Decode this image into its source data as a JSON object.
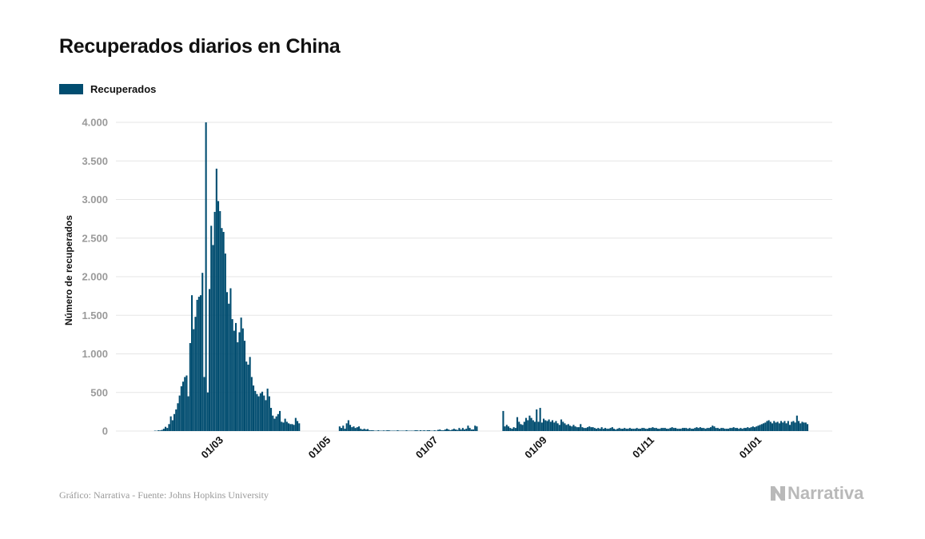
{
  "chart_data": {
    "type": "bar",
    "title": "Recuperados diarios en China",
    "ylabel": "Número de recuperados",
    "xlabel": "",
    "ylim": [
      0,
      4000
    ],
    "yticks": [
      0,
      500,
      1000,
      1500,
      2000,
      2500,
      3000,
      3500,
      4000
    ],
    "ytick_labels": [
      "0",
      "500",
      "1.000",
      "1.500",
      "2.000",
      "2.500",
      "3.000",
      "3.500",
      "4.000"
    ],
    "xtick_labels": [
      "01/03",
      "01/05",
      "01/07",
      "01/09",
      "01/11",
      "01/01"
    ],
    "grid": true,
    "legend": {
      "position": "top-left",
      "entries": [
        "Recuperados"
      ]
    },
    "color": "#014d70",
    "series": [
      {
        "name": "Recuperados",
        "start_date": "2020-01-22",
        "values": [
          0,
          0,
          0,
          5,
          3,
          10,
          8,
          15,
          30,
          55,
          40,
          90,
          190,
          140,
          220,
          280,
          360,
          460,
          580,
          640,
          700,
          720,
          450,
          1140,
          1760,
          1320,
          1480,
          1700,
          1740,
          1760,
          2050,
          700,
          4000,
          500,
          1840,
          2660,
          2410,
          2840,
          3400,
          2980,
          2850,
          2630,
          2580,
          2300,
          1800,
          1650,
          1850,
          1450,
          1300,
          1400,
          1150,
          1280,
          1470,
          1330,
          1170,
          900,
          860,
          960,
          700,
          590,
          520,
          480,
          450,
          490,
          510,
          460,
          400,
          550,
          450,
          300,
          200,
          160,
          190,
          220,
          260,
          120,
          110,
          160,
          120,
          100,
          90,
          90,
          80,
          170,
          130,
          100,
          0,
          0,
          0,
          0,
          0,
          0,
          0,
          0,
          0,
          0,
          0,
          0,
          0,
          0,
          0,
          0,
          0,
          0,
          0,
          0,
          0,
          0,
          60,
          40,
          70,
          30,
          100,
          140,
          80,
          50,
          60,
          40,
          50,
          60,
          30,
          20,
          30,
          20,
          25,
          10,
          10,
          10,
          5,
          5,
          10,
          5,
          5,
          8,
          5,
          10,
          10,
          5,
          5,
          5,
          5,
          10,
          5,
          5,
          5,
          5,
          10,
          5,
          5,
          5,
          5,
          10,
          10,
          5,
          10,
          5,
          10,
          5,
          10,
          10,
          5,
          5,
          10,
          5,
          15,
          20,
          10,
          10,
          20,
          30,
          20,
          10,
          20,
          30,
          20,
          15,
          40,
          20,
          40,
          20,
          30,
          70,
          40,
          20,
          20,
          70,
          60,
          0,
          0,
          0,
          0,
          0,
          0,
          0,
          0,
          0,
          0,
          0,
          0,
          0,
          0,
          260,
          60,
          80,
          60,
          40,
          30,
          50,
          40,
          180,
          120,
          90,
          80,
          120,
          170,
          140,
          200,
          170,
          140,
          120,
          280,
          120,
          300,
          110,
          160,
          140,
          130,
          150,
          120,
          140,
          110,
          130,
          100,
          80,
          150,
          120,
          100,
          80,
          90,
          70,
          60,
          80,
          60,
          50,
          50,
          90,
          50,
          40,
          40,
          50,
          60,
          50,
          50,
          40,
          30,
          40,
          30,
          50,
          30,
          40,
          30,
          30,
          40,
          50,
          30,
          20,
          30,
          40,
          30,
          30,
          40,
          30,
          30,
          40,
          30,
          30,
          30,
          40,
          30,
          30,
          40,
          40,
          30,
          30,
          40,
          40,
          50,
          40,
          40,
          30,
          30,
          40,
          40,
          40,
          30,
          30,
          40,
          50,
          40,
          40,
          30,
          30,
          30,
          40,
          40,
          40,
          30,
          40,
          30,
          30,
          40,
          50,
          40,
          50,
          40,
          40,
          30,
          40,
          40,
          50,
          70,
          60,
          40,
          40,
          30,
          40,
          40,
          30,
          30,
          30,
          40,
          40,
          50,
          40,
          40,
          30,
          40,
          30,
          40,
          40,
          50,
          40,
          50,
          60,
          50,
          60,
          70,
          80,
          90,
          100,
          110,
          130,
          140,
          120,
          100,
          130,
          110,
          120,
          100,
          130,
          110,
          130,
          100,
          130,
          80,
          120,
          130,
          110,
          200,
          130,
          100,
          120,
          110,
          110,
          90
        ]
      }
    ]
  },
  "footer": {
    "source": "Gráfico: Narrativa - Fuente: Johns Hopkins University",
    "logo_text": "Narrativa"
  }
}
